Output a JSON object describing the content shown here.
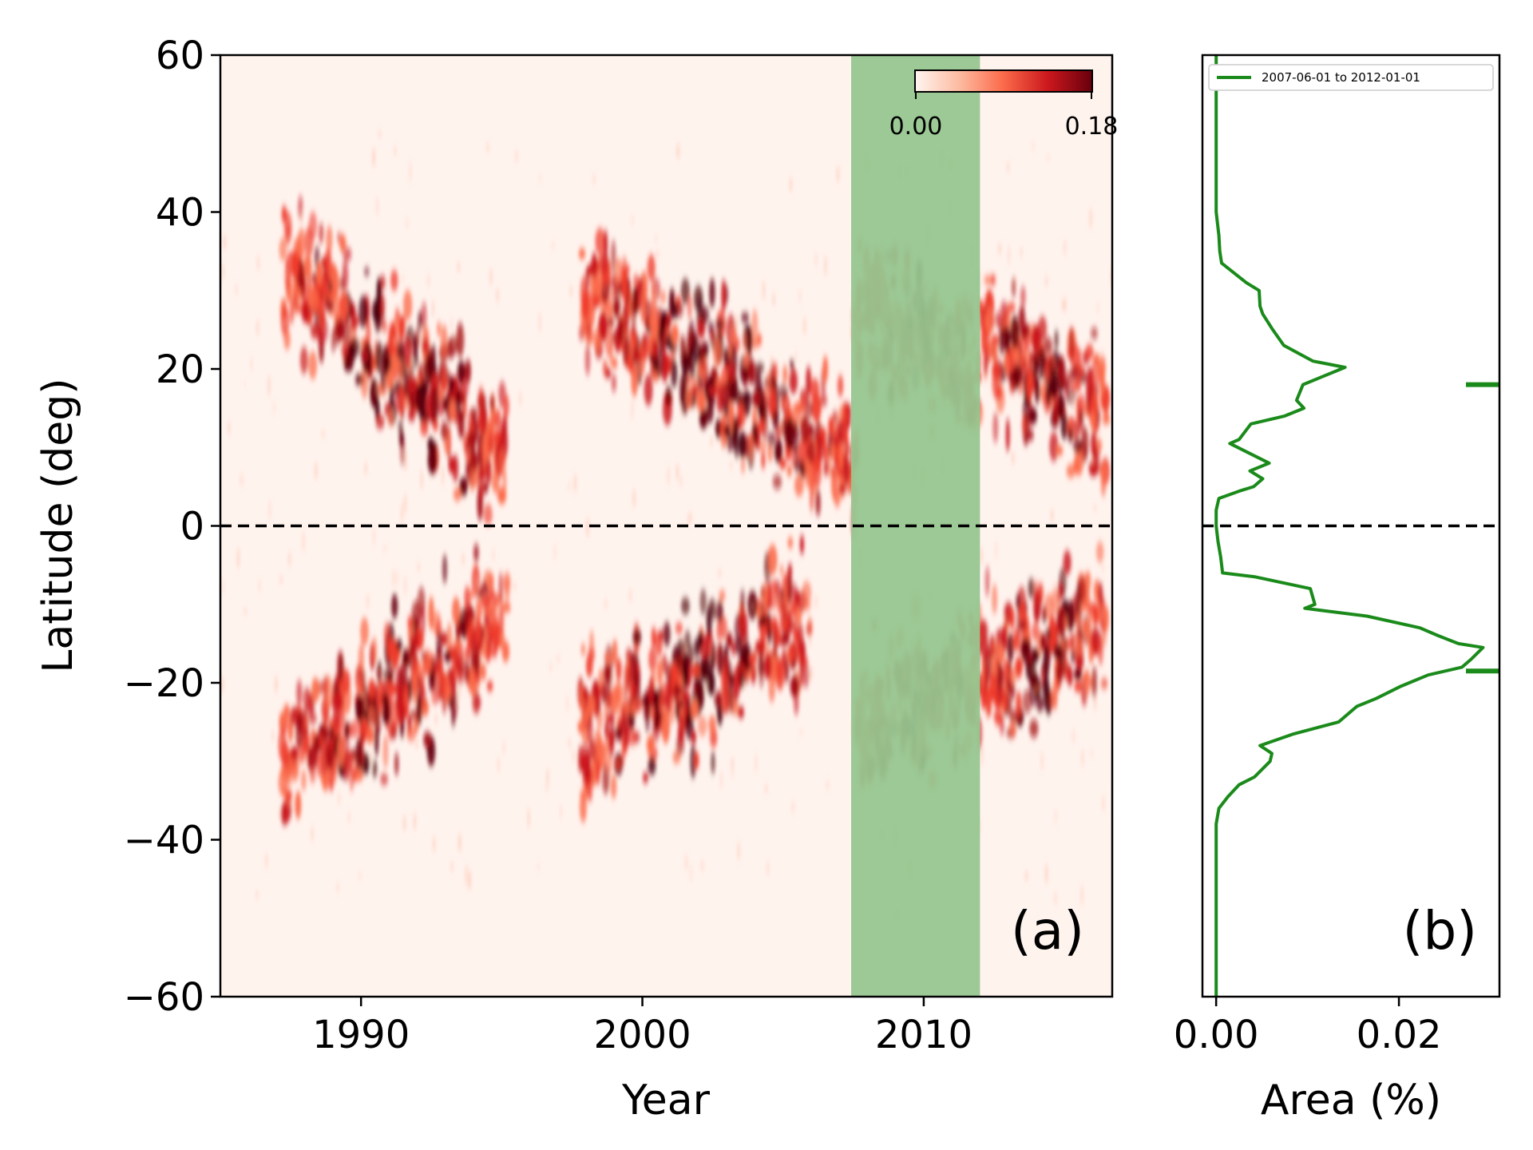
{
  "chart_data": [
    {
      "panel": "(a)",
      "type": "heatmap",
      "xlabel": "Year",
      "ylabel": "Latitude (deg)",
      "xlim": [
        1985,
        2016.7
      ],
      "ylim": [
        -60,
        60
      ],
      "xticks": [
        1990,
        2000,
        2010
      ],
      "yticks": [
        -60,
        -40,
        -20,
        0,
        20,
        40,
        60
      ],
      "ytick_labels": [
        "−60",
        "−40",
        "−20",
        "0",
        "20",
        "40",
        "60"
      ],
      "colormap": "Reds",
      "colorbar": {
        "min_label": "0.00",
        "max_label": "0.18",
        "min": 0.0,
        "max": 0.18,
        "placement": "top-right"
      },
      "highlight_span": {
        "x": [
          2007.42,
          2012.0
        ],
        "color": "#96c68f"
      },
      "reference_line": {
        "y": 0,
        "style": "dashed",
        "color": "#000000"
      },
      "activity_bands": [
        {
          "x": [
            1987.2,
            1995.2
          ],
          "lat_start": 33,
          "lat_end": 9
        },
        {
          "x": [
            1997.8,
            2007.6
          ],
          "lat_start": 30,
          "lat_end": 8
        },
        {
          "x": [
            2007.6,
            2012.0
          ],
          "lat_start": 28,
          "lat_end": 20
        },
        {
          "x": [
            2012.0,
            2016.5
          ],
          "lat_start": 24,
          "lat_end": 13
        },
        {
          "x": [
            1987.2,
            1995.2
          ],
          "lat_start": -31,
          "lat_end": -11
        },
        {
          "x": [
            1997.8,
            2006.0
          ],
          "lat_start": -27,
          "lat_end": -12
        },
        {
          "x": [
            2007.6,
            2012.0
          ],
          "lat_start": -26,
          "lat_end": -19
        },
        {
          "x": [
            2012.0,
            2016.5
          ],
          "lat_start": -19,
          "lat_end": -11
        }
      ]
    },
    {
      "panel": "(b)",
      "type": "line",
      "xlabel": "Area (%)",
      "xlim": [
        -0.0015,
        0.031
      ],
      "ylim": [
        -60,
        60
      ],
      "xticks": [
        0.0,
        0.02
      ],
      "xtick_labels": [
        "0.00",
        "0.02"
      ],
      "legend": {
        "entries": [
          "2007-06-01 to 2012-01-01"
        ],
        "placement": "top"
      },
      "color": "#1a8a1a",
      "reference_line": {
        "y": 0,
        "style": "dashed",
        "color": "#000000"
      },
      "mean_markers": [
        18,
        -18.5
      ],
      "series": [
        {
          "name": "2007-06-01 to 2012-01-01",
          "points": [
            [
              0.0,
              60
            ],
            [
              0.0,
              50
            ],
            [
              0.0,
              40
            ],
            [
              0.0003,
              37
            ],
            [
              0.0004,
              35
            ],
            [
              0.0006,
              33.5
            ],
            [
              0.0033,
              31
            ],
            [
              0.0047,
              30
            ],
            [
              0.0048,
              28
            ],
            [
              0.0051,
              27
            ],
            [
              0.0062,
              25
            ],
            [
              0.0074,
              23
            ],
            [
              0.0106,
              21
            ],
            [
              0.0141,
              20.2
            ],
            [
              0.0095,
              18
            ],
            [
              0.0088,
              16
            ],
            [
              0.0096,
              15
            ],
            [
              0.0075,
              14
            ],
            [
              0.0038,
              13
            ],
            [
              0.0025,
              11
            ],
            [
              0.0015,
              10.5
            ],
            [
              0.0058,
              8
            ],
            [
              0.0037,
              7
            ],
            [
              0.0051,
              6
            ],
            [
              0.0041,
              5
            ],
            [
              0.0027,
              4.5
            ],
            [
              0.0003,
              3.5
            ],
            [
              0.0,
              2
            ],
            [
              0.0,
              0
            ],
            [
              0.0002,
              -2
            ],
            [
              0.0005,
              -4
            ],
            [
              0.0007,
              -6
            ],
            [
              0.0043,
              -6.5
            ],
            [
              0.0103,
              -8
            ],
            [
              0.0108,
              -10
            ],
            [
              0.0097,
              -10.5
            ],
            [
              0.0165,
              -11.5
            ],
            [
              0.0223,
              -13
            ],
            [
              0.0243,
              -14
            ],
            [
              0.0265,
              -15
            ],
            [
              0.0292,
              -15.5
            ],
            [
              0.0279,
              -17
            ],
            [
              0.0269,
              -18
            ],
            [
              0.0232,
              -19
            ],
            [
              0.0201,
              -20.5
            ],
            [
              0.0175,
              -22
            ],
            [
              0.0154,
              -23
            ],
            [
              0.0134,
              -25
            ],
            [
              0.0085,
              -26.5
            ],
            [
              0.0048,
              -28
            ],
            [
              0.0061,
              -29
            ],
            [
              0.0059,
              -30
            ],
            [
              0.0042,
              -32
            ],
            [
              0.0025,
              -33
            ],
            [
              0.0013,
              -34.5
            ],
            [
              0.0003,
              -36
            ],
            [
              0.0,
              -38
            ],
            [
              0.0,
              -46
            ],
            [
              0.0,
              -60
            ]
          ]
        }
      ]
    }
  ]
}
